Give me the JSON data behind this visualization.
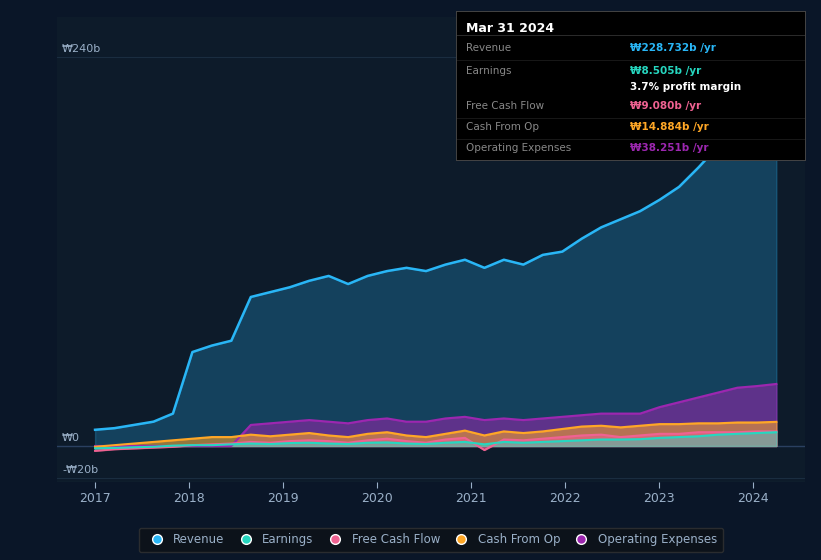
{
  "background_color": "#0a1628",
  "chart_bg_color": "#0d1b2a",
  "ylabel_top": "₩240b",
  "ylabel_zero": "₩0",
  "ylabel_neg": "-₩20b",
  "ylim": [
    -22,
    265
  ],
  "ytick_vals": [
    -20,
    0,
    240
  ],
  "xlim": [
    2016.6,
    2024.55
  ],
  "xticks": [
    2017,
    2018,
    2019,
    2020,
    2021,
    2022,
    2023,
    2024
  ],
  "grid_color": "#1a2d40",
  "revenue_color": "#29b6f6",
  "earnings_color": "#26d7c0",
  "fcf_color": "#f06292",
  "cashop_color": "#ffa726",
  "opex_color": "#9c27b0",
  "text_color": "#9ab0c8",
  "white": "#ffffff",
  "tooltip_bg": "#000000",
  "revenue": [
    10,
    11,
    13,
    15,
    20,
    58,
    62,
    65,
    92,
    95,
    98,
    102,
    105,
    100,
    105,
    108,
    110,
    108,
    112,
    115,
    110,
    115,
    112,
    118,
    120,
    128,
    135,
    140,
    145,
    152,
    160,
    172,
    185,
    200,
    215,
    228
  ],
  "earnings": [
    -1.5,
    -1.2,
    -0.8,
    -0.5,
    0.2,
    0.5,
    0.5,
    1.0,
    1.5,
    1.2,
    1.8,
    2.0,
    1.5,
    1.2,
    2.0,
    2.2,
    1.5,
    1.2,
    2.0,
    2.5,
    1.0,
    2.5,
    2.0,
    2.5,
    3.0,
    3.5,
    4.0,
    4.0,
    4.2,
    5.0,
    5.5,
    6.0,
    7.0,
    7.5,
    8.0,
    8.5
  ],
  "fcf": [
    -3,
    -2,
    -1.5,
    -1,
    -0.5,
    0.5,
    1.0,
    1.5,
    2.5,
    2.0,
    3.0,
    3.5,
    3.0,
    2.0,
    3.5,
    4.5,
    3.0,
    2.0,
    4.0,
    5.0,
    -2.5,
    4.0,
    3.5,
    4.5,
    5.5,
    6.5,
    7.0,
    5.5,
    6.5,
    7.5,
    7.5,
    8.5,
    8.5,
    8.5,
    9.0,
    9.0
  ],
  "cashop": [
    -0.5,
    0.5,
    1.5,
    2.5,
    3.5,
    4.5,
    5.5,
    5.5,
    7.0,
    6.0,
    7.0,
    8.0,
    6.5,
    5.5,
    7.5,
    8.5,
    6.5,
    5.5,
    7.5,
    9.5,
    6.5,
    9.0,
    8.0,
    9.0,
    10.5,
    12.0,
    12.5,
    11.5,
    12.5,
    13.5,
    13.5,
    14.0,
    14.0,
    14.5,
    14.5,
    14.9
  ],
  "opex": [
    0,
    0,
    0,
    0,
    0,
    0,
    0,
    0,
    13,
    14,
    15,
    16,
    15,
    14,
    16,
    17,
    15,
    15,
    17,
    18,
    16,
    17,
    16,
    17,
    18,
    19,
    20,
    20,
    20,
    24,
    27,
    30,
    33,
    36,
    37,
    38.3
  ],
  "tooltip": {
    "date": "Mar 31 2024",
    "rows": [
      {
        "label": "Revenue",
        "val": "₩228.732b /yr",
        "color": "#29b6f6"
      },
      {
        "label": "Earnings",
        "val": "₩8.505b /yr",
        "color": "#26d7c0"
      },
      {
        "label": "",
        "val": "3.7% profit margin",
        "color": "#ffffff"
      },
      {
        "label": "Free Cash Flow",
        "val": "₩9.080b /yr",
        "color": "#f06292"
      },
      {
        "label": "Cash From Op",
        "val": "₩14.884b /yr",
        "color": "#ffa726"
      },
      {
        "label": "Operating Expenses",
        "val": "₩38.251b /yr",
        "color": "#9c27b0"
      }
    ]
  },
  "legend": [
    {
      "label": "Revenue",
      "color": "#29b6f6"
    },
    {
      "label": "Earnings",
      "color": "#26d7c0"
    },
    {
      "label": "Free Cash Flow",
      "color": "#f06292"
    },
    {
      "label": "Cash From Op",
      "color": "#ffa726"
    },
    {
      "label": "Operating Expenses",
      "color": "#9c27b0"
    }
  ]
}
